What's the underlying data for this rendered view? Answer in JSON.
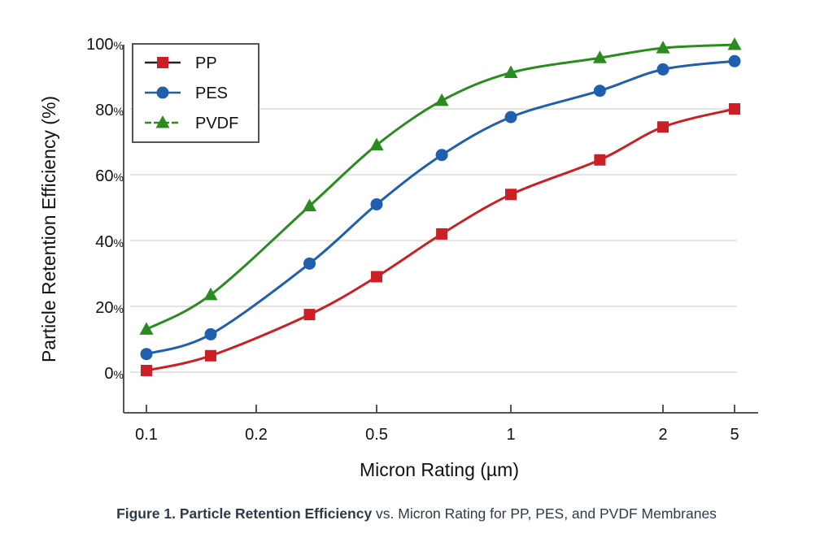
{
  "chart_data": {
    "type": "line",
    "title": "",
    "xlabel": "Micron Rating (µm)",
    "ylabel": "Particle Retention Efficiency (%)",
    "x_scale": "log (irregular tick spacing)",
    "x_ticks": [
      0.1,
      0.2,
      0.5,
      1,
      2,
      5
    ],
    "x_tick_labels": [
      "0.1",
      "0.2",
      "0.5",
      "1",
      "2",
      "5"
    ],
    "y_ticks": [
      0,
      20,
      40,
      60,
      80,
      100
    ],
    "y_tick_labels": [
      "0",
      "20",
      "40",
      "60",
      "80",
      "100"
    ],
    "y_tick_suffix": "%",
    "ylim": [
      -12,
      103
    ],
    "grid": "horizontal",
    "legend_position": "top-left",
    "x": [
      0.1,
      0.15,
      0.3,
      0.5,
      0.7,
      1,
      1.5,
      2,
      5
    ],
    "series": [
      {
        "name": "PP",
        "marker": "square",
        "color": "#cc1f25",
        "values": [
          0.5,
          5,
          17.5,
          29,
          42,
          54,
          64.5,
          74.5,
          80
        ]
      },
      {
        "name": "PES",
        "marker": "circle",
        "color": "#1f5fae",
        "values": [
          5.5,
          11.5,
          33,
          51,
          66,
          77.5,
          85.5,
          92,
          94.5
        ]
      },
      {
        "name": "PVDF",
        "marker": "triangle",
        "color": "#2a8c1e",
        "values": [
          13,
          23.5,
          50.5,
          69,
          82.5,
          91,
          95.5,
          98.5,
          99.5
        ]
      }
    ]
  },
  "caption": {
    "bold": "Figure 1. Particle Retention Efficiency",
    "rest": " vs. Micron Rating for PP, PES, and PVDF Membranes"
  }
}
